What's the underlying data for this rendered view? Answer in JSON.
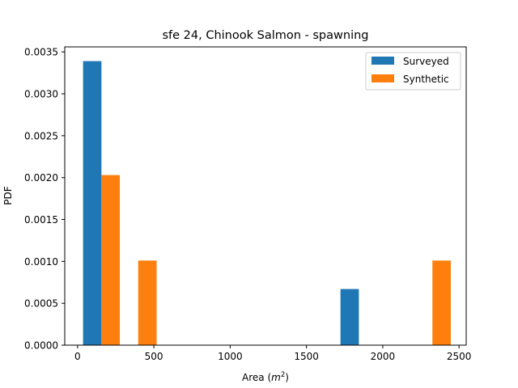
{
  "chart_data": {
    "type": "bar",
    "title": "sfe 24, Chinook Salmon - spawning",
    "xlabel": "Area (",
    "xlabel_math": "m",
    "xlabel_exp": "2",
    "xlabel_close": ")",
    "ylabel": "PDF",
    "xlim": [
      -84,
      2547
    ],
    "ylim": [
      0,
      0.00356
    ],
    "xticks": [
      0,
      500,
      1000,
      1500,
      2000,
      2500
    ],
    "xtick_labels": [
      "0",
      "500",
      "1000",
      "1500",
      "2000",
      "2500"
    ],
    "yticks": [
      0,
      0.0005,
      0.001,
      0.0015,
      0.002,
      0.0025,
      0.003,
      0.0035
    ],
    "ytick_labels": [
      "0.0000",
      "0.0005",
      "0.0010",
      "0.0015",
      "0.0020",
      "0.0025",
      "0.0030",
      "0.0035"
    ],
    "grid": false,
    "legend_position": "top-right",
    "bin_edges": [
      36,
      277,
      518,
      759,
      1000,
      1241,
      1482,
      1723,
      1964,
      2205,
      2446
    ],
    "series": [
      {
        "name": "Surveyed",
        "color": "#1f77b4",
        "values": [
          0.00339,
          0,
          0,
          0,
          0,
          0,
          0,
          0.00067,
          0,
          0
        ]
      },
      {
        "name": "Synthetic",
        "color": "#ff7f0e",
        "values": [
          0.00203,
          0.00101,
          0,
          0,
          0,
          0,
          0,
          0,
          0,
          0.00101
        ]
      }
    ]
  }
}
